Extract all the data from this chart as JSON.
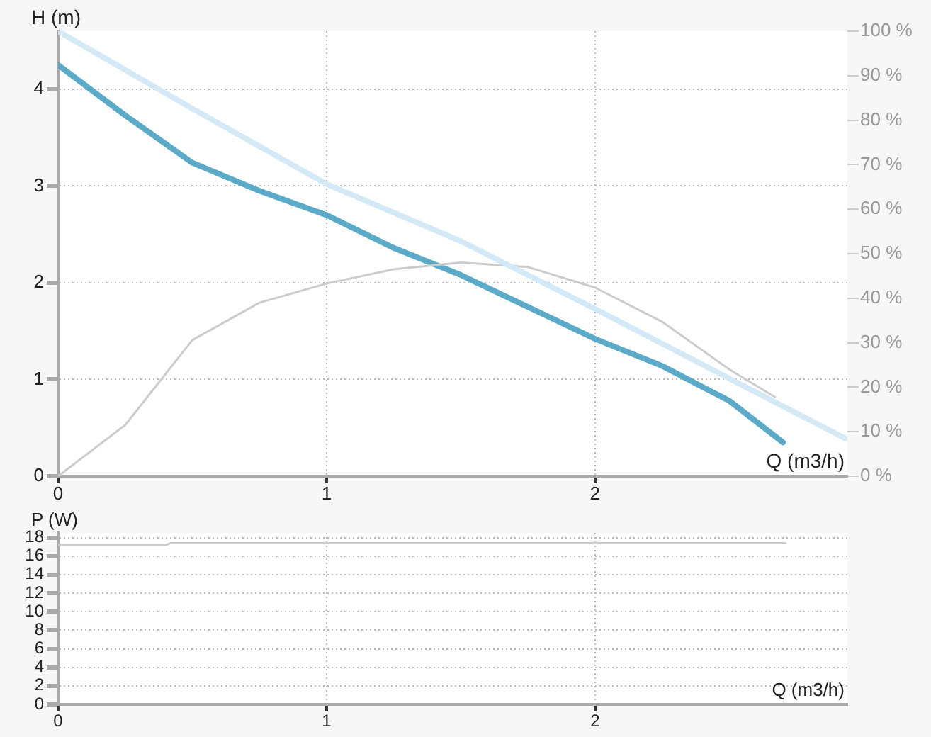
{
  "chart_data": [
    {
      "type": "line",
      "xlabel": "Q (m3/h)",
      "ylabel": "H (m)",
      "xlim": [
        0,
        2.94
      ],
      "xticks": [
        0,
        1,
        2
      ],
      "ylim": [
        0,
        4.6
      ],
      "yticks": [
        0,
        1,
        2,
        3,
        4
      ],
      "y2lim": [
        0,
        100
      ],
      "y2ticks": [
        {
          "value": 0,
          "label": "0 %"
        },
        {
          "value": 10,
          "label": "10 %"
        },
        {
          "value": 20,
          "label": "20 %"
        },
        {
          "value": 30,
          "label": "30 %"
        },
        {
          "value": 40,
          "label": "40 %"
        },
        {
          "value": 50,
          "label": "50 %"
        },
        {
          "value": 60,
          "label": "60 %"
        },
        {
          "value": 70,
          "label": "70 %"
        },
        {
          "value": 80,
          "label": "80 %"
        },
        {
          "value": 90,
          "label": "90 %"
        },
        {
          "value": 100,
          "label": "100 %"
        }
      ],
      "grid": true,
      "legend": false,
      "series": [
        {
          "color": "#d4e9f6",
          "line_style": "dotted",
          "x": [
            0,
            0.5,
            1,
            1.5,
            2,
            2.5,
            2.94
          ],
          "values": [
            4.6,
            3.8,
            3.02,
            2.43,
            1.73,
            1.01,
            0.38
          ]
        },
        {
          "color": "#cccccc",
          "line_style": "solid",
          "axis": "y2",
          "x": [
            0,
            0.25,
            0.5,
            0.75,
            1,
            1.25,
            1.5,
            1.75,
            2,
            2.25,
            2.5,
            2.67
          ],
          "values": [
            0,
            11.5,
            30.6,
            39,
            43.3,
            46.5,
            48,
            47,
            42.4,
            34.7,
            24,
            17.8
          ]
        },
        {
          "color": "#5aaac8",
          "line_style": "solid",
          "x": [
            0,
            0.25,
            0.5,
            0.75,
            1,
            1.25,
            1.5,
            1.75,
            2,
            2.25,
            2.5,
            2.7
          ],
          "values": [
            4.25,
            3.73,
            3.24,
            2.95,
            2.7,
            2.36,
            2.08,
            1.75,
            1.42,
            1.14,
            0.78,
            0.35
          ]
        }
      ]
    },
    {
      "type": "line",
      "xlabel": "Q (m3/h)",
      "ylabel": "P (W)",
      "xlim": [
        0,
        2.94
      ],
      "xticks": [
        0,
        1,
        2
      ],
      "ylim": [
        0,
        18.5
      ],
      "yticks": [
        0,
        2,
        4,
        6,
        8,
        10,
        12,
        14,
        16,
        18
      ],
      "grid": true,
      "legend": false,
      "series": [
        {
          "color": "#cccccc",
          "line_style": "solid",
          "x": [
            0,
            0.4,
            0.42,
            2.71
          ],
          "values": [
            17.2,
            17.2,
            17.4,
            17.4
          ]
        }
      ]
    }
  ]
}
